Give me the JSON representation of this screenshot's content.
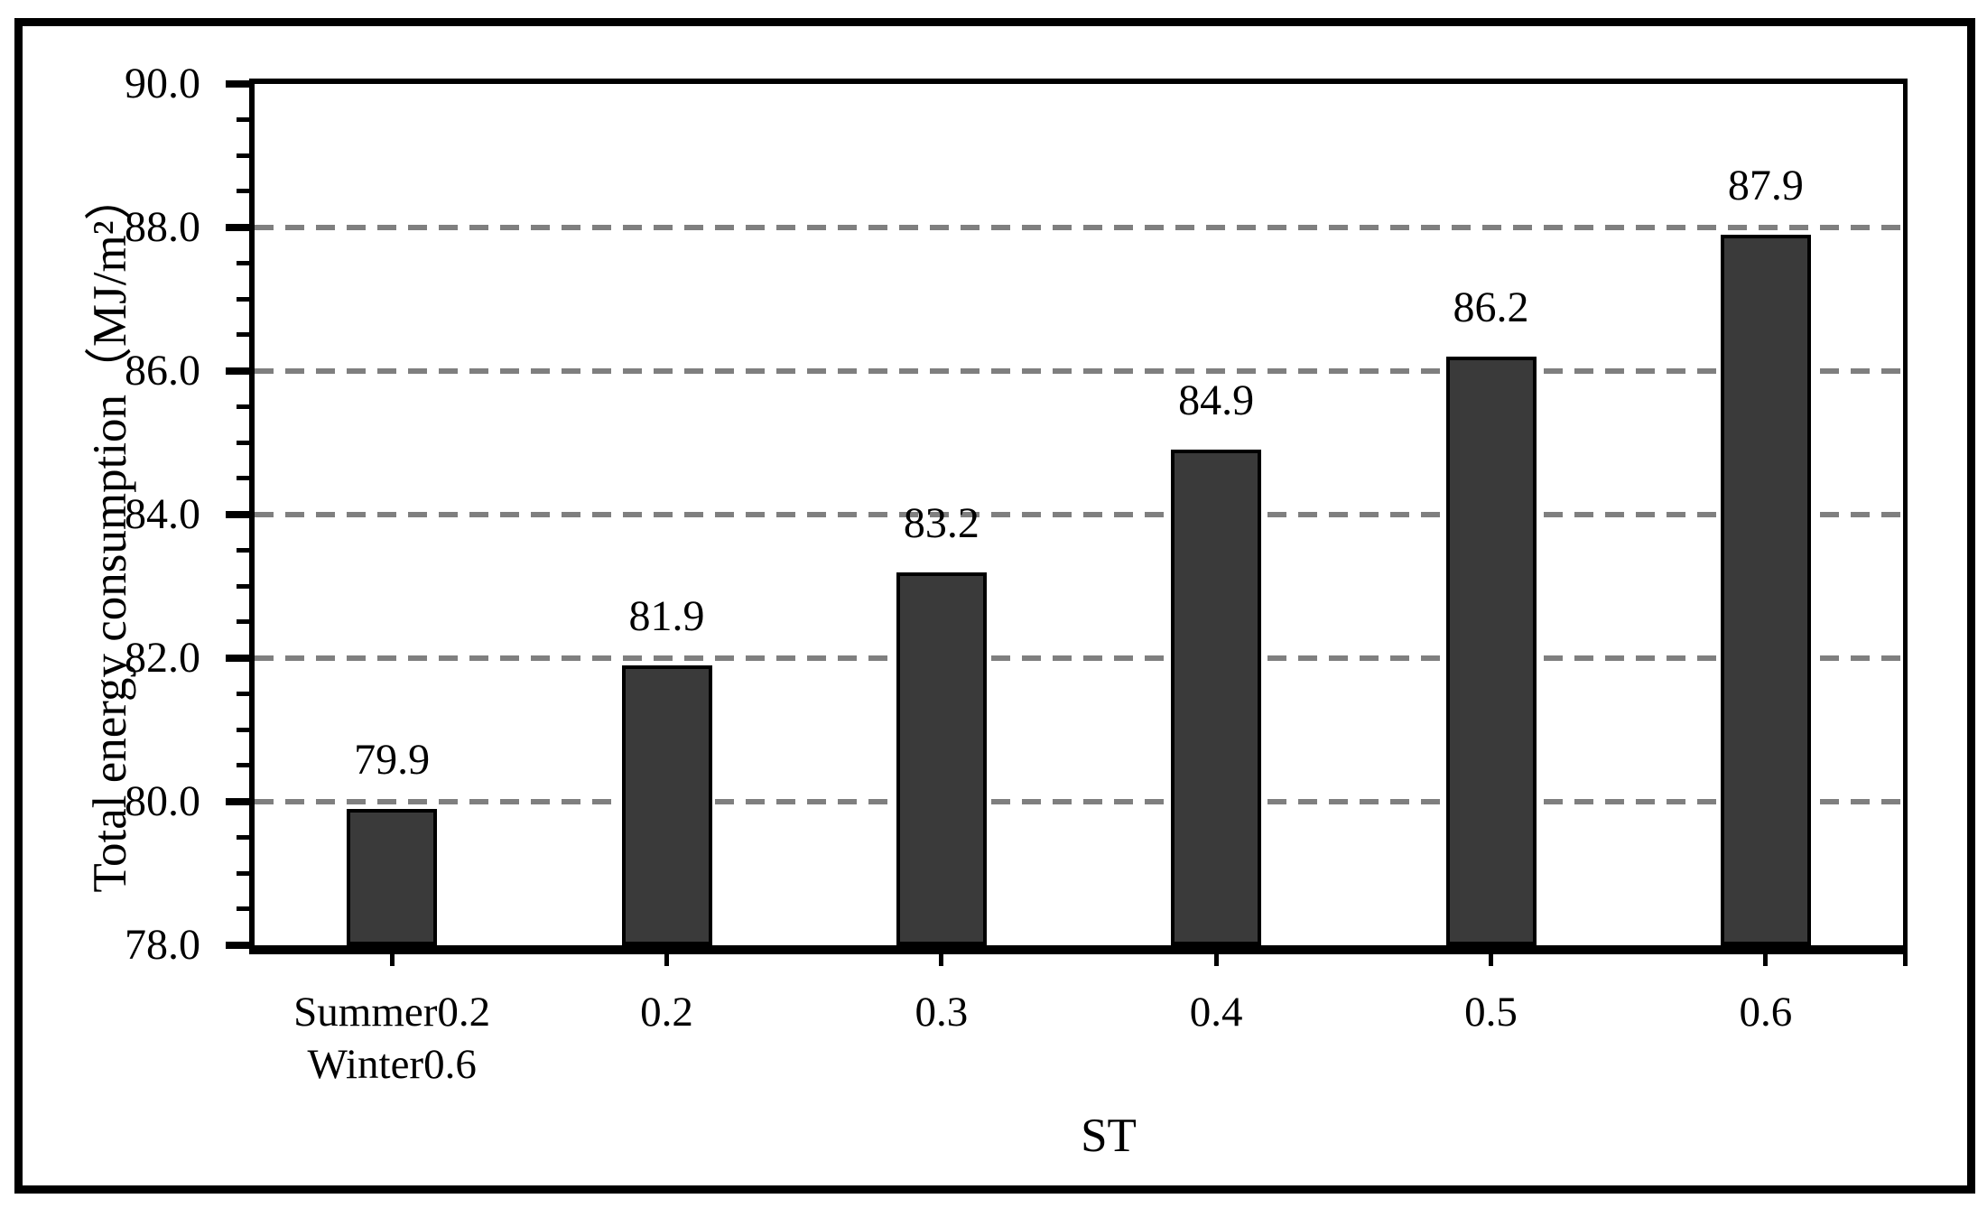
{
  "chart_data": {
    "type": "bar",
    "title": "",
    "xlabel": "ST",
    "ylabel": "Total energy consumption（MJ/m²）",
    "categories": [
      "Summer0.2\nWinter0.6",
      "0.2",
      "0.3",
      "0.4",
      "0.5",
      "0.6"
    ],
    "values": [
      79.9,
      81.9,
      83.2,
      84.9,
      86.2,
      87.9
    ],
    "data_labels": [
      "79.9",
      "81.9",
      "83.2",
      "84.9",
      "86.2",
      "87.9"
    ],
    "ylim": [
      78.0,
      90.0
    ],
    "ytick_step": 2.0,
    "y_minor_tick_step": 0.5,
    "ytick_labels": [
      "90.0",
      "88.0",
      "86.0",
      "84.0",
      "82.0",
      "80.0",
      "78.0"
    ],
    "legend": "none",
    "grid": "horizontal-major-dashed",
    "colors": {
      "bar_fill": "#3a3a3a",
      "bar_border": "#000000",
      "gridline": "#7f7f7f",
      "axis": "#000000",
      "background": "#ffffff"
    }
  }
}
